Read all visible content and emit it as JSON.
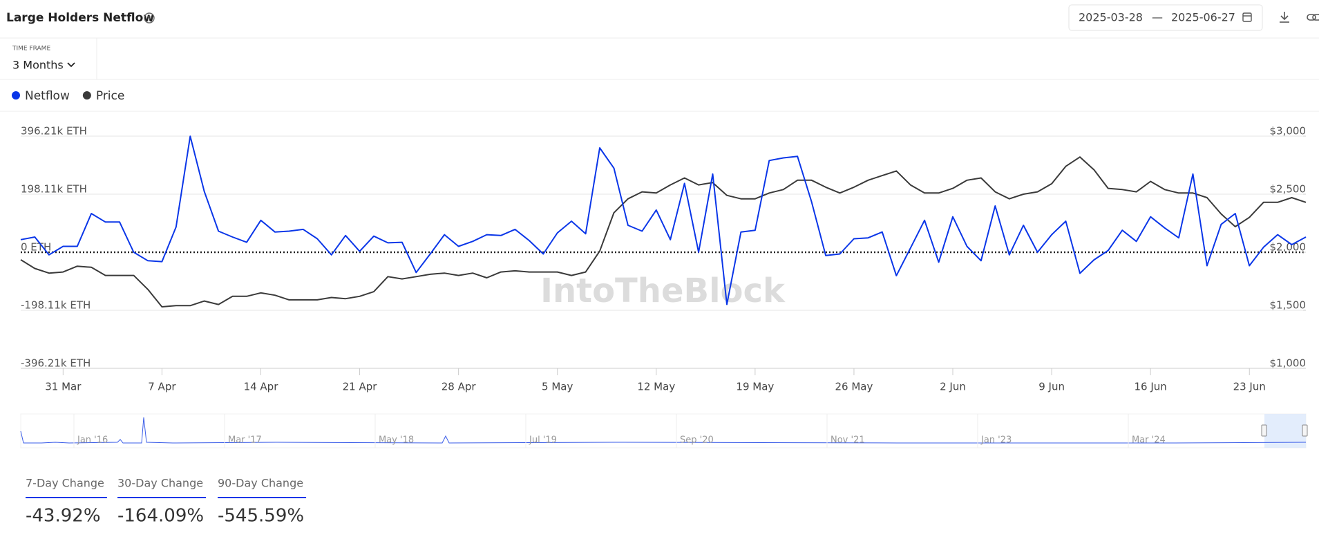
{
  "header": {
    "title": "Large Holders Netflow",
    "date_from": "2025-03-28",
    "date_sep": "—",
    "date_to": "2025-06-27"
  },
  "controls": {
    "timeframe_label": "TIME FRAME",
    "timeframe_value": "3 Months"
  },
  "watermark": "IntoTheBlock",
  "chart_data": {
    "type": "line",
    "x": [
      "2025-03-28",
      "2025-03-29",
      "2025-03-30",
      "2025-03-31",
      "2025-04-01",
      "2025-04-02",
      "2025-04-03",
      "2025-04-04",
      "2025-04-05",
      "2025-04-06",
      "2025-04-07",
      "2025-04-08",
      "2025-04-09",
      "2025-04-10",
      "2025-04-11",
      "2025-04-12",
      "2025-04-13",
      "2025-04-14",
      "2025-04-15",
      "2025-04-16",
      "2025-04-17",
      "2025-04-18",
      "2025-04-19",
      "2025-04-20",
      "2025-04-21",
      "2025-04-22",
      "2025-04-23",
      "2025-04-24",
      "2025-04-25",
      "2025-04-26",
      "2025-04-27",
      "2025-04-28",
      "2025-04-29",
      "2025-04-30",
      "2025-05-01",
      "2025-05-02",
      "2025-05-03",
      "2025-05-04",
      "2025-05-05",
      "2025-05-06",
      "2025-05-07",
      "2025-05-08",
      "2025-05-09",
      "2025-05-10",
      "2025-05-11",
      "2025-05-12",
      "2025-05-13",
      "2025-05-14",
      "2025-05-15",
      "2025-05-16",
      "2025-05-17",
      "2025-05-18",
      "2025-05-19",
      "2025-05-20",
      "2025-05-21",
      "2025-05-22",
      "2025-05-23",
      "2025-05-24",
      "2025-05-25",
      "2025-05-26",
      "2025-05-27",
      "2025-05-28",
      "2025-05-29",
      "2025-05-30",
      "2025-05-31",
      "2025-06-01",
      "2025-06-02",
      "2025-06-03",
      "2025-06-04",
      "2025-06-05",
      "2025-06-06",
      "2025-06-07",
      "2025-06-08",
      "2025-06-09",
      "2025-06-10",
      "2025-06-11",
      "2025-06-12",
      "2025-06-13",
      "2025-06-14",
      "2025-06-15",
      "2025-06-16",
      "2025-06-17",
      "2025-06-18",
      "2025-06-19",
      "2025-06-20",
      "2025-06-21",
      "2025-06-22",
      "2025-06-23",
      "2025-06-24",
      "2025-06-25",
      "2025-06-26",
      "2025-06-27"
    ],
    "xlim": [
      "2025-03-28",
      "2025-06-27"
    ],
    "xticks": [
      {
        "value": "2025-03-31",
        "label": "31 Mar"
      },
      {
        "value": "2025-04-07",
        "label": "7 Apr"
      },
      {
        "value": "2025-04-14",
        "label": "14 Apr"
      },
      {
        "value": "2025-04-21",
        "label": "21 Apr"
      },
      {
        "value": "2025-04-28",
        "label": "28 Apr"
      },
      {
        "value": "2025-05-05",
        "label": "5 May"
      },
      {
        "value": "2025-05-12",
        "label": "12 May"
      },
      {
        "value": "2025-05-19",
        "label": "19 May"
      },
      {
        "value": "2025-05-26",
        "label": "26 May"
      },
      {
        "value": "2025-06-02",
        "label": "2 Jun"
      },
      {
        "value": "2025-06-09",
        "label": "9 Jun"
      },
      {
        "value": "2025-06-16",
        "label": "16 Jun"
      },
      {
        "value": "2025-06-23",
        "label": "23 Jun"
      }
    ],
    "ylim": [
      -396210,
      396210
    ],
    "yticks": [
      {
        "value": 396210,
        "label": "396.21k ETH"
      },
      {
        "value": 198110,
        "label": "198.11k ETH"
      },
      {
        "value": 0,
        "label": "0 ETH"
      },
      {
        "value": -198110,
        "label": "-198.11k ETH"
      },
      {
        "value": -396210,
        "label": "-396.21k ETH"
      }
    ],
    "y2lim": [
      1000,
      3000
    ],
    "y2ticks": [
      {
        "value": 3000,
        "label": "$3,000"
      },
      {
        "value": 2500,
        "label": "$2,500"
      },
      {
        "value": 2000,
        "label": "$2,000"
      },
      {
        "value": 1500,
        "label": "$1,500"
      },
      {
        "value": 1000,
        "label": "$1,000"
      }
    ],
    "grid": true,
    "series": [
      {
        "name": "Netflow",
        "color": "#0a36e8",
        "values": [
          43000,
          52000,
          -9000,
          20000,
          20000,
          132000,
          103000,
          103000,
          0,
          -29000,
          -32000,
          86000,
          396000,
          207000,
          72000,
          52000,
          34000,
          109000,
          69000,
          72000,
          78000,
          46000,
          -9000,
          57000,
          3000,
          55000,
          32000,
          34000,
          -69000,
          -6000,
          60000,
          20000,
          37000,
          60000,
          57000,
          78000,
          40000,
          -6000,
          66000,
          106000,
          63000,
          356000,
          287000,
          92000,
          72000,
          144000,
          43000,
          235000,
          0,
          267000,
          -178000,
          69000,
          75000,
          313000,
          322000,
          327000,
          172000,
          -11000,
          -6000,
          46000,
          49000,
          69000,
          -80000,
          14000,
          109000,
          -34000,
          121000,
          20000,
          -29000,
          158000,
          -9000,
          92000,
          0,
          60000,
          106000,
          -72000,
          -26000,
          6000,
          75000,
          37000,
          121000,
          83000,
          49000,
          267000,
          -46000,
          95000,
          132000,
          -46000,
          17000,
          60000,
          26000,
          52000
        ]
      },
      {
        "name": "Price",
        "color": "#3a3a3a",
        "axis": "y2",
        "values": [
          1935,
          1860,
          1820,
          1830,
          1880,
          1870,
          1800,
          1800,
          1800,
          1680,
          1530,
          1540,
          1540,
          1580,
          1550,
          1620,
          1620,
          1650,
          1630,
          1590,
          1590,
          1590,
          1610,
          1600,
          1620,
          1660,
          1790,
          1770,
          1790,
          1810,
          1820,
          1800,
          1820,
          1780,
          1830,
          1840,
          1830,
          1830,
          1830,
          1800,
          1830,
          2010,
          2340,
          2460,
          2520,
          2510,
          2580,
          2640,
          2580,
          2600,
          2490,
          2460,
          2460,
          2510,
          2540,
          2620,
          2620,
          2560,
          2510,
          2560,
          2620,
          2660,
          2700,
          2580,
          2510,
          2510,
          2550,
          2620,
          2640,
          2520,
          2460,
          2500,
          2520,
          2590,
          2740,
          2820,
          2710,
          2550,
          2540,
          2520,
          2610,
          2540,
          2510,
          2510,
          2470,
          2330,
          2220,
          2300,
          2430,
          2430,
          2470,
          2430
        ]
      }
    ]
  },
  "navigator": {
    "labels": [
      "Jan '16",
      "Mar '17",
      "May '18",
      "Jul '19",
      "Sep '20",
      "Nov '21",
      "Jan '23",
      "Mar '24"
    ]
  },
  "stats": [
    {
      "label": "7-Day Change",
      "value": "-43.92%"
    },
    {
      "label": "30-Day Change",
      "value": "-164.09%"
    },
    {
      "label": "90-Day Change",
      "value": "-545.59%"
    }
  ]
}
